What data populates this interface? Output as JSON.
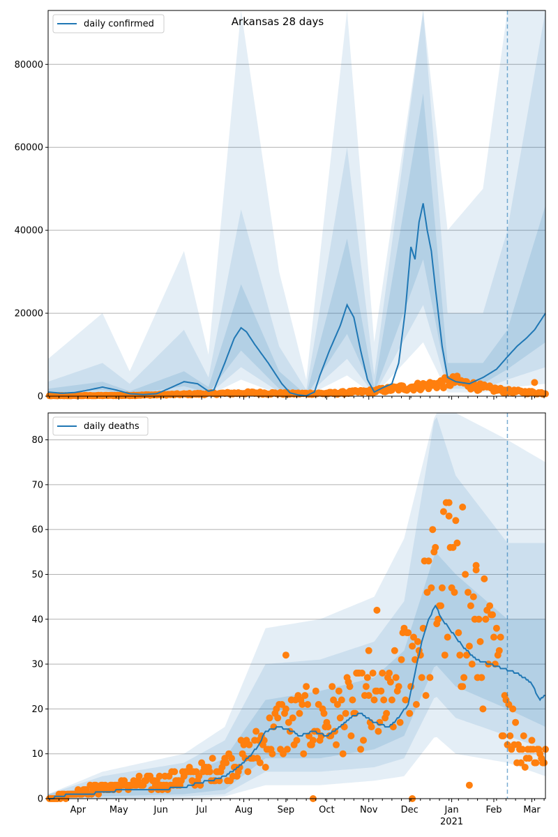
{
  "title": "Arkansas 28 days",
  "colors": {
    "model": "#1f77b4",
    "observed": "#ff7f0e",
    "band": "#1f77b4",
    "grid": "#b0b0b0",
    "vline": "#1f77b4"
  },
  "x_axis": {
    "labels": [
      "Apr",
      "May",
      "Jun",
      "Jul",
      "Aug",
      "Sep",
      "Oct",
      "Nov",
      "Dec",
      "Jan",
      "Feb",
      "Mar"
    ],
    "year_label": "2021"
  },
  "chart_data": [
    {
      "type": "line",
      "legend": "daily confirmed",
      "legend_position": "upper-left",
      "ylim": [
        0,
        93000
      ],
      "yticks": [
        "0",
        "20000",
        "40000",
        "60000",
        "80000"
      ],
      "ytick_values": [
        0,
        20000,
        40000,
        60000,
        80000
      ],
      "xlim_days": [
        0,
        366
      ],
      "forecast_start_day": 338,
      "model_line": [
        [
          0,
          1000
        ],
        [
          10,
          700
        ],
        [
          20,
          900
        ],
        [
          30,
          1500
        ],
        [
          40,
          2200
        ],
        [
          50,
          1500
        ],
        [
          60,
          600
        ],
        [
          70,
          400
        ],
        [
          80,
          600
        ],
        [
          90,
          2000
        ],
        [
          100,
          3500
        ],
        [
          110,
          3000
        ],
        [
          118,
          1200
        ],
        [
          122,
          1500
        ],
        [
          130,
          8000
        ],
        [
          137,
          14000
        ],
        [
          142,
          16500
        ],
        [
          146,
          15500
        ],
        [
          152,
          12500
        ],
        [
          162,
          8000
        ],
        [
          172,
          3000
        ],
        [
          178,
          800
        ],
        [
          184,
          300
        ],
        [
          190,
          100
        ],
        [
          196,
          1000
        ],
        [
          200,
          5000
        ],
        [
          207,
          11000
        ],
        [
          215,
          17000
        ],
        [
          220,
          22000
        ],
        [
          225,
          19000
        ],
        [
          230,
          11000
        ],
        [
          235,
          4000
        ],
        [
          240,
          1000
        ],
        [
          246,
          2000
        ],
        [
          253,
          3000
        ],
        [
          258,
          8000
        ],
        [
          263,
          21000
        ],
        [
          267,
          36000
        ],
        [
          270,
          33000
        ],
        [
          273,
          42000
        ],
        [
          276,
          46500
        ],
        [
          279,
          40000
        ],
        [
          282,
          35000
        ],
        [
          285,
          26000
        ],
        [
          290,
          12000
        ],
        [
          294,
          4500
        ],
        [
          300,
          3500
        ],
        [
          310,
          3000
        ],
        [
          320,
          4500
        ],
        [
          330,
          6500
        ],
        [
          338,
          9500
        ],
        [
          345,
          12000
        ],
        [
          352,
          14000
        ],
        [
          358,
          16000
        ],
        [
          366,
          20000
        ]
      ],
      "band_inner": [
        [
          0,
          700,
          1800
        ],
        [
          40,
          1500,
          3500
        ],
        [
          60,
          400,
          1200
        ],
        [
          100,
          2400,
          6000
        ],
        [
          118,
          800,
          2200
        ],
        [
          142,
          11000,
          27000
        ],
        [
          170,
          1800,
          6000
        ],
        [
          190,
          100,
          300
        ],
        [
          220,
          15000,
          38000
        ],
        [
          240,
          700,
          2000
        ],
        [
          276,
          33000,
          73000
        ],
        [
          294,
          3000,
          8000
        ],
        [
          320,
          3000,
          8000
        ],
        [
          338,
          6500,
          16000
        ],
        [
          366,
          13000,
          46000
        ]
      ],
      "band_mid": [
        [
          0,
          400,
          3500
        ],
        [
          40,
          800,
          8000
        ],
        [
          60,
          200,
          3000
        ],
        [
          100,
          1500,
          16000
        ],
        [
          118,
          400,
          4500
        ],
        [
          142,
          7000,
          45000
        ],
        [
          170,
          1000,
          12000
        ],
        [
          190,
          50,
          1500
        ],
        [
          220,
          9000,
          60000
        ],
        [
          240,
          400,
          5000
        ],
        [
          276,
          22000,
          93000
        ],
        [
          294,
          1800,
          20000
        ],
        [
          320,
          1800,
          20000
        ],
        [
          338,
          4000,
          40000
        ],
        [
          366,
          7000,
          93000
        ]
      ],
      "band_outer": [
        [
          0,
          200,
          9000
        ],
        [
          40,
          300,
          20000
        ],
        [
          60,
          50,
          6000
        ],
        [
          100,
          700,
          35000
        ],
        [
          118,
          200,
          10000
        ],
        [
          142,
          4000,
          93000
        ],
        [
          170,
          500,
          30000
        ],
        [
          190,
          0,
          4000
        ],
        [
          220,
          5000,
          93000
        ],
        [
          240,
          200,
          13000
        ],
        [
          276,
          13000,
          93000
        ],
        [
          294,
          900,
          40000
        ],
        [
          320,
          900,
          50000
        ],
        [
          338,
          2000,
          93000
        ],
        [
          366,
          3000,
          93000
        ]
      ],
      "observed_summary": {
        "description_only": false,
        "anchors": [
          [
            0,
            100
          ],
          [
            60,
            200
          ],
          [
            120,
            600
          ],
          [
            150,
            800
          ],
          [
            180,
            600
          ],
          [
            210,
            700
          ],
          [
            240,
            1200
          ],
          [
            260,
            2000
          ],
          [
            280,
            2600
          ],
          [
            300,
            3600
          ],
          [
            320,
            2000
          ],
          [
            338,
            1200
          ],
          [
            366,
            700
          ]
        ],
        "outliers": [
          [
            358,
            3300
          ]
        ]
      }
    },
    {
      "type": "line",
      "legend": "daily deaths",
      "legend_position": "upper-left",
      "ylim": [
        0,
        86
      ],
      "yticks": [
        "0",
        "10",
        "20",
        "30",
        "40",
        "50",
        "60",
        "70",
        "80"
      ],
      "ytick_values": [
        0,
        10,
        20,
        30,
        40,
        50,
        60,
        70,
        80
      ],
      "xlim_days": [
        0,
        366
      ],
      "forecast_start_day": 338,
      "model_line": [
        [
          0,
          0
        ],
        [
          10,
          0.5
        ],
        [
          15,
          1
        ],
        [
          30,
          1
        ],
        [
          40,
          1.5
        ],
        [
          60,
          2
        ],
        [
          80,
          2
        ],
        [
          100,
          2.5
        ],
        [
          110,
          3.5
        ],
        [
          120,
          4
        ],
        [
          130,
          5
        ],
        [
          140,
          7
        ],
        [
          150,
          10
        ],
        [
          155,
          12
        ],
        [
          160,
          15
        ],
        [
          170,
          16
        ],
        [
          180,
          15
        ],
        [
          185,
          14
        ],
        [
          195,
          15
        ],
        [
          205,
          14
        ],
        [
          215,
          16
        ],
        [
          222,
          18
        ],
        [
          230,
          19
        ],
        [
          240,
          17
        ],
        [
          250,
          16
        ],
        [
          255,
          17
        ],
        [
          265,
          21
        ],
        [
          270,
          28
        ],
        [
          275,
          35
        ],
        [
          280,
          40
        ],
        [
          285,
          43
        ],
        [
          290,
          40
        ],
        [
          295,
          38
        ],
        [
          305,
          34
        ],
        [
          315,
          31
        ],
        [
          325,
          30
        ],
        [
          335,
          29
        ],
        [
          345,
          28
        ],
        [
          355,
          26
        ],
        [
          362,
          22
        ],
        [
          366,
          23
        ]
      ],
      "band_inner": [
        [
          0,
          0,
          1
        ],
        [
          40,
          0.5,
          3
        ],
        [
          100,
          1,
          5
        ],
        [
          130,
          2,
          9
        ],
        [
          160,
          9,
          22
        ],
        [
          200,
          9,
          24
        ],
        [
          240,
          11,
          27
        ],
        [
          262,
          14,
          33
        ],
        [
          285,
          30,
          55
        ],
        [
          300,
          25,
          50
        ],
        [
          338,
          20,
          40
        ],
        [
          366,
          16,
          40
        ]
      ],
      "band_mid": [
        [
          0,
          0,
          1
        ],
        [
          40,
          0,
          5
        ],
        [
          100,
          0.5,
          8
        ],
        [
          130,
          1,
          13
        ],
        [
          160,
          6,
          30
        ],
        [
          200,
          6,
          31
        ],
        [
          240,
          7,
          35
        ],
        [
          262,
          9,
          44
        ],
        [
          285,
          23,
          86
        ],
        [
          300,
          18,
          72
        ],
        [
          338,
          14,
          57
        ],
        [
          366,
          11,
          57
        ]
      ],
      "band_outer": [
        [
          0,
          0,
          1
        ],
        [
          40,
          0,
          6
        ],
        [
          100,
          0,
          10
        ],
        [
          130,
          0.5,
          16
        ],
        [
          160,
          3,
          38
        ],
        [
          200,
          3,
          40
        ],
        [
          240,
          4,
          45
        ],
        [
          262,
          5,
          58
        ],
        [
          285,
          14,
          86
        ],
        [
          300,
          10,
          86
        ],
        [
          338,
          8,
          80
        ],
        [
          366,
          5,
          75
        ]
      ],
      "observed_summary": {
        "anchors": [
          [
            0,
            0
          ],
          [
            30,
            2
          ],
          [
            60,
            3
          ],
          [
            90,
            4
          ],
          [
            120,
            6
          ],
          [
            150,
            10
          ],
          [
            170,
            16
          ],
          [
            190,
            17
          ],
          [
            210,
            18
          ],
          [
            230,
            20
          ],
          [
            250,
            20
          ],
          [
            265,
            30
          ],
          [
            280,
            40
          ],
          [
            290,
            50
          ],
          [
            305,
            40
          ],
          [
            320,
            35
          ],
          [
            335,
            25
          ],
          [
            345,
            12
          ],
          [
            366,
            10
          ]
        ],
        "outliers": [
          [
            268,
            0
          ],
          [
            295,
            66
          ],
          [
            305,
            65
          ],
          [
            315,
            52
          ],
          [
            310,
            3
          ],
          [
            195,
            0
          ],
          [
            175,
            32
          ],
          [
            242,
            42
          ],
          [
            236,
            33
          ]
        ]
      }
    }
  ]
}
